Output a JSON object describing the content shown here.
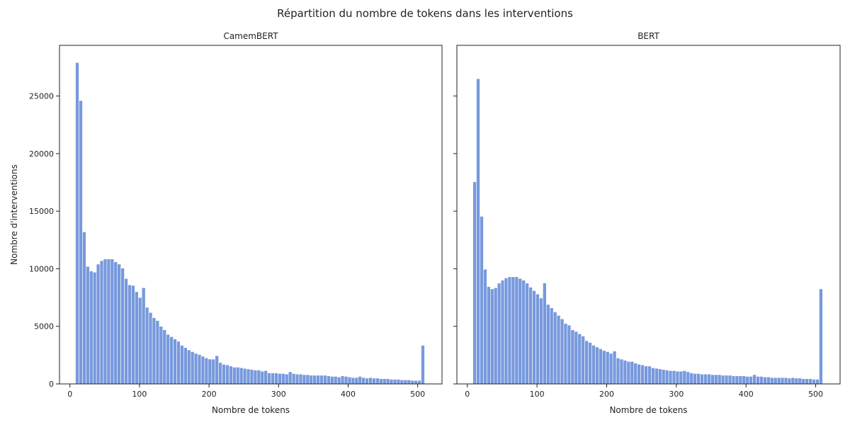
{
  "figure": {
    "title": "Répartition du nombre de tokens dans les interventions",
    "bar_color": "#7799dd"
  },
  "chart_data": [
    {
      "type": "bar",
      "title": "CamemBERT",
      "xlabel": "Nombre de tokens",
      "ylabel": "Nombre d'interventions",
      "xlim": [
        -15,
        535
      ],
      "ylim": [
        0,
        29400
      ],
      "xticks": [
        0,
        100,
        200,
        300,
        400,
        500
      ],
      "yticks": [
        0,
        5000,
        10000,
        15000,
        20000,
        25000
      ],
      "bin_start": 8,
      "bin_width": 5.02,
      "values": [
        27900,
        24600,
        13200,
        10200,
        9800,
        9700,
        10400,
        10700,
        10850,
        10850,
        10850,
        10600,
        10400,
        10050,
        9150,
        8600,
        8550,
        8000,
        7500,
        8350,
        6650,
        6200,
        5750,
        5500,
        5000,
        4700,
        4300,
        4100,
        3900,
        3700,
        3350,
        3150,
        2950,
        2800,
        2650,
        2550,
        2400,
        2250,
        2150,
        2150,
        2450,
        1850,
        1700,
        1650,
        1550,
        1450,
        1450,
        1400,
        1350,
        1300,
        1250,
        1200,
        1200,
        1100,
        1150,
        950,
        950,
        950,
        900,
        900,
        850,
        1050,
        900,
        850,
        850,
        800,
        800,
        750,
        750,
        750,
        750,
        750,
        700,
        650,
        650,
        600,
        700,
        650,
        600,
        550,
        550,
        650,
        550,
        500,
        550,
        500,
        500,
        450,
        450,
        450,
        400,
        400,
        400,
        350,
        350,
        350,
        300,
        300,
        300,
        3350
      ]
    },
    {
      "type": "bar",
      "title": "BERT",
      "xlabel": "Nombre de tokens",
      "ylabel": "",
      "xlim": [
        -15,
        535
      ],
      "ylim": [
        0,
        29400
      ],
      "xticks": [
        0,
        100,
        200,
        300,
        400,
        500
      ],
      "yticks": [
        0,
        5000,
        10000,
        15000,
        20000,
        25000
      ],
      "bin_start": 8,
      "bin_width": 5.02,
      "values": [
        17550,
        26500,
        14550,
        9950,
        8450,
        8250,
        8350,
        8750,
        9000,
        9200,
        9300,
        9300,
        9300,
        9150,
        9000,
        8750,
        8400,
        8100,
        7800,
        7450,
        8750,
        6900,
        6600,
        6250,
        5950,
        5650,
        5250,
        5100,
        4700,
        4550,
        4350,
        4150,
        3750,
        3600,
        3350,
        3200,
        3050,
        2900,
        2800,
        2650,
        2850,
        2250,
        2150,
        2050,
        1950,
        1950,
        1800,
        1700,
        1650,
        1550,
        1550,
        1400,
        1350,
        1300,
        1250,
        1200,
        1150,
        1150,
        1100,
        1100,
        1150,
        1050,
        950,
        900,
        900,
        850,
        850,
        850,
        800,
        800,
        800,
        750,
        750,
        750,
        700,
        700,
        700,
        700,
        650,
        650,
        800,
        650,
        650,
        600,
        600,
        550,
        550,
        550,
        550,
        550,
        500,
        550,
        500,
        500,
        450,
        450,
        450,
        400,
        400,
        8250
      ]
    }
  ]
}
